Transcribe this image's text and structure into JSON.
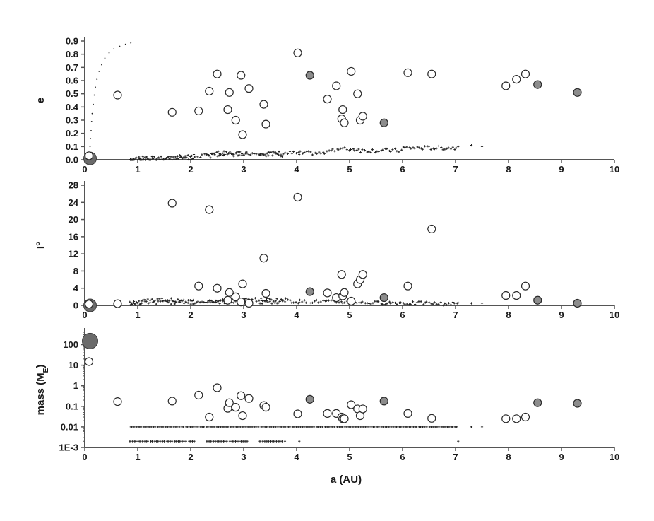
{
  "chart_data": {
    "type": "scatter",
    "xlabel": "a (AU)",
    "xlim": [
      0,
      10
    ],
    "x_ticks": [
      "0",
      "1",
      "2",
      "3",
      "4",
      "5",
      "6",
      "7",
      "8",
      "9",
      "10"
    ],
    "colors": {
      "open_marker": "#ffffff",
      "filled_marker": "#8c8c8c",
      "dots": "#222222",
      "axis": "#555555"
    },
    "open_planets": [
      {
        "a": 0.08,
        "e": 0.03,
        "i": 0.3,
        "m": 15
      },
      {
        "a": 0.62,
        "e": 0.49,
        "i": 0.4,
        "m": 0.17
      },
      {
        "a": 1.65,
        "e": 0.36,
        "i": 23.8,
        "m": 0.18
      },
      {
        "a": 2.15,
        "e": 0.37,
        "i": 4.5,
        "m": 0.35
      },
      {
        "a": 2.35,
        "e": 0.52,
        "i": 22.3,
        "m": 0.03
      },
      {
        "a": 2.5,
        "e": 0.65,
        "i": 4.0,
        "m": 0.8
      },
      {
        "a": 2.7,
        "e": 0.38,
        "i": 1.2,
        "m": 0.08
      },
      {
        "a": 2.73,
        "e": 0.51,
        "i": 3.0,
        "m": 0.15
      },
      {
        "a": 2.85,
        "e": 0.3,
        "i": 2.0,
        "m": 0.09
      },
      {
        "a": 2.95,
        "e": 0.64,
        "i": 0.8,
        "m": 0.33
      },
      {
        "a": 2.98,
        "e": 0.19,
        "i": 5.0,
        "m": 0.035
      },
      {
        "a": 3.1,
        "e": 0.54,
        "i": 0.5,
        "m": 0.24
      },
      {
        "a": 3.38,
        "e": 0.42,
        "i": 11.0,
        "m": 0.11
      },
      {
        "a": 3.42,
        "e": 0.27,
        "i": 2.8,
        "m": 0.09
      },
      {
        "a": 4.02,
        "e": 0.81,
        "i": 25.2,
        "m": 0.043
      },
      {
        "a": 4.58,
        "e": 0.46,
        "i": 2.9,
        "m": 0.045
      },
      {
        "a": 4.75,
        "e": 0.56,
        "i": 1.8,
        "m": 0.045
      },
      {
        "a": 4.85,
        "e": 0.31,
        "i": 7.2,
        "m": 0.03
      },
      {
        "a": 4.87,
        "e": 0.38,
        "i": 2.2,
        "m": 0.025
      },
      {
        "a": 4.9,
        "e": 0.28,
        "i": 3.0,
        "m": 0.025
      },
      {
        "a": 5.03,
        "e": 0.67,
        "i": 1.0,
        "m": 0.12
      },
      {
        "a": 5.15,
        "e": 0.5,
        "i": 5.0,
        "m": 0.075
      },
      {
        "a": 5.2,
        "e": 0.3,
        "i": 6.0,
        "m": 0.035
      },
      {
        "a": 5.25,
        "e": 0.33,
        "i": 7.2,
        "m": 0.075
      },
      {
        "a": 6.1,
        "e": 0.66,
        "i": 4.5,
        "m": 0.045
      },
      {
        "a": 6.55,
        "e": 0.65,
        "i": 17.8,
        "m": 0.026
      },
      {
        "a": 7.95,
        "e": 0.56,
        "i": 2.3,
        "m": 0.025
      },
      {
        "a": 8.15,
        "e": 0.61,
        "i": 2.3,
        "m": 0.025
      },
      {
        "a": 8.32,
        "e": 0.65,
        "i": 4.5,
        "m": 0.03
      }
    ],
    "filled_planets": [
      {
        "a": 4.25,
        "e": 0.64,
        "i": 3.2,
        "m": 0.22
      },
      {
        "a": 5.65,
        "e": 0.28,
        "i": 1.8,
        "m": 0.18
      },
      {
        "a": 8.55,
        "e": 0.57,
        "i": 1.2,
        "m": 0.15
      },
      {
        "a": 9.3,
        "e": 0.51,
        "i": 0.5,
        "m": 0.14
      }
    ],
    "giant_planet": {
      "a": 0.1,
      "e": 0.01,
      "i": 0.0,
      "m": 150
    },
    "panels": [
      {
        "key": "e",
        "ylabel": "e",
        "scale": "linear",
        "ylim": [
          0,
          0.9
        ],
        "y_ticks": [
          {
            "label": "0.0",
            "v": 0
          },
          {
            "label": "0.1",
            "v": 0.1
          },
          {
            "label": "0.2",
            "v": 0.2
          },
          {
            "label": "0.3",
            "v": 0.3
          },
          {
            "label": "0.4",
            "v": 0.4
          },
          {
            "label": "0.5",
            "v": 0.5
          },
          {
            "label": "0.6",
            "v": 0.6
          },
          {
            "label": "0.7",
            "v": 0.7
          },
          {
            "label": "0.8",
            "v": 0.8
          },
          {
            "label": "0.9",
            "v": 0.9
          }
        ]
      },
      {
        "key": "i",
        "ylabel": "I°",
        "scale": "linear",
        "ylim": [
          0,
          28
        ],
        "y_ticks": [
          {
            "label": "0",
            "v": 0
          },
          {
            "label": "4",
            "v": 4
          },
          {
            "label": "8",
            "v": 8
          },
          {
            "label": "12",
            "v": 12
          },
          {
            "label": "16",
            "v": 16
          },
          {
            "label": "20",
            "v": 20
          },
          {
            "label": "24",
            "v": 24
          },
          {
            "label": "28",
            "v": 28
          }
        ]
      },
      {
        "key": "m",
        "ylabel": "mass (M",
        "ylabel_sub": "E",
        "ylabel_end": ")",
        "scale": "log",
        "ylim": [
          0.001,
          400
        ],
        "y_ticks": [
          {
            "label": "1E-3",
            "v": 0.001
          },
          {
            "label": "0.01",
            "v": 0.01
          },
          {
            "label": "0.1",
            "v": 0.1
          },
          {
            "label": "1",
            "v": 1
          },
          {
            "label": "10",
            "v": 10
          },
          {
            "label": "100",
            "v": 100
          }
        ]
      }
    ],
    "e_curve": [
      {
        "a": 0.08,
        "e": 0.04
      },
      {
        "a": 0.1,
        "e": 0.1
      },
      {
        "a": 0.11,
        "e": 0.16
      },
      {
        "a": 0.12,
        "e": 0.22
      },
      {
        "a": 0.13,
        "e": 0.29
      },
      {
        "a": 0.14,
        "e": 0.35
      },
      {
        "a": 0.16,
        "e": 0.42
      },
      {
        "a": 0.18,
        "e": 0.49
      },
      {
        "a": 0.2,
        "e": 0.55
      },
      {
        "a": 0.23,
        "e": 0.61
      },
      {
        "a": 0.27,
        "e": 0.67
      },
      {
        "a": 0.32,
        "e": 0.72
      },
      {
        "a": 0.38,
        "e": 0.77
      },
      {
        "a": 0.46,
        "e": 0.81
      },
      {
        "a": 0.55,
        "e": 0.84
      },
      {
        "a": 0.66,
        "e": 0.86
      },
      {
        "a": 0.77,
        "e": 0.875
      },
      {
        "a": 0.87,
        "e": 0.885
      }
    ],
    "embryo_bands": [
      {
        "from": 0.85,
        "to": 1.1,
        "e": 0.0,
        "i": 0.5,
        "m": 0.01
      },
      {
        "from": 1.1,
        "to": 1.7,
        "e": 0.01,
        "i": 1.3,
        "m": 0.01
      },
      {
        "from": 1.7,
        "to": 2.4,
        "e": 0.03,
        "i": 1.0,
        "m": 0.01
      },
      {
        "from": 2.4,
        "to": 3.0,
        "e": 0.05,
        "i": 1.0,
        "m": 0.01
      },
      {
        "from": 3.0,
        "to": 3.9,
        "e": 0.05,
        "i": 1.3,
        "m": 0.01
      },
      {
        "from": 3.9,
        "to": 4.6,
        "e": 0.05,
        "i": 0.9,
        "m": 0.01
      },
      {
        "from": 4.6,
        "to": 5.2,
        "e": 0.08,
        "i": 0.8,
        "m": 0.01
      },
      {
        "from": 5.2,
        "to": 6.0,
        "e": 0.07,
        "i": 0.6,
        "m": 0.01
      },
      {
        "from": 6.0,
        "to": 6.6,
        "e": 0.09,
        "i": 0.5,
        "m": 0.01
      },
      {
        "from": 6.6,
        "to": 7.05,
        "e": 0.09,
        "i": 0.4,
        "m": 0.01
      },
      {
        "from": 0.85,
        "to": 2.1,
        "e": 0.01,
        "i": 0.7,
        "m": 0.002
      },
      {
        "from": 2.3,
        "to": 3.1,
        "e": 0.04,
        "i": 0.8,
        "m": 0.002
      },
      {
        "from": 3.3,
        "to": 3.8,
        "e": 0.04,
        "i": 0.8,
        "m": 0.002
      }
    ],
    "sparse_embryos": [
      {
        "a": 7.3,
        "e": 0.11,
        "i": 0.5,
        "m": 0.01
      },
      {
        "a": 7.5,
        "e": 0.1,
        "i": 0.5,
        "m": 0.01
      },
      {
        "a": 4.05,
        "e": 0.04,
        "i": 0.7,
        "m": 0.002
      },
      {
        "a": 7.05,
        "e": 0.1,
        "i": 0.6,
        "m": 0.002
      }
    ]
  }
}
